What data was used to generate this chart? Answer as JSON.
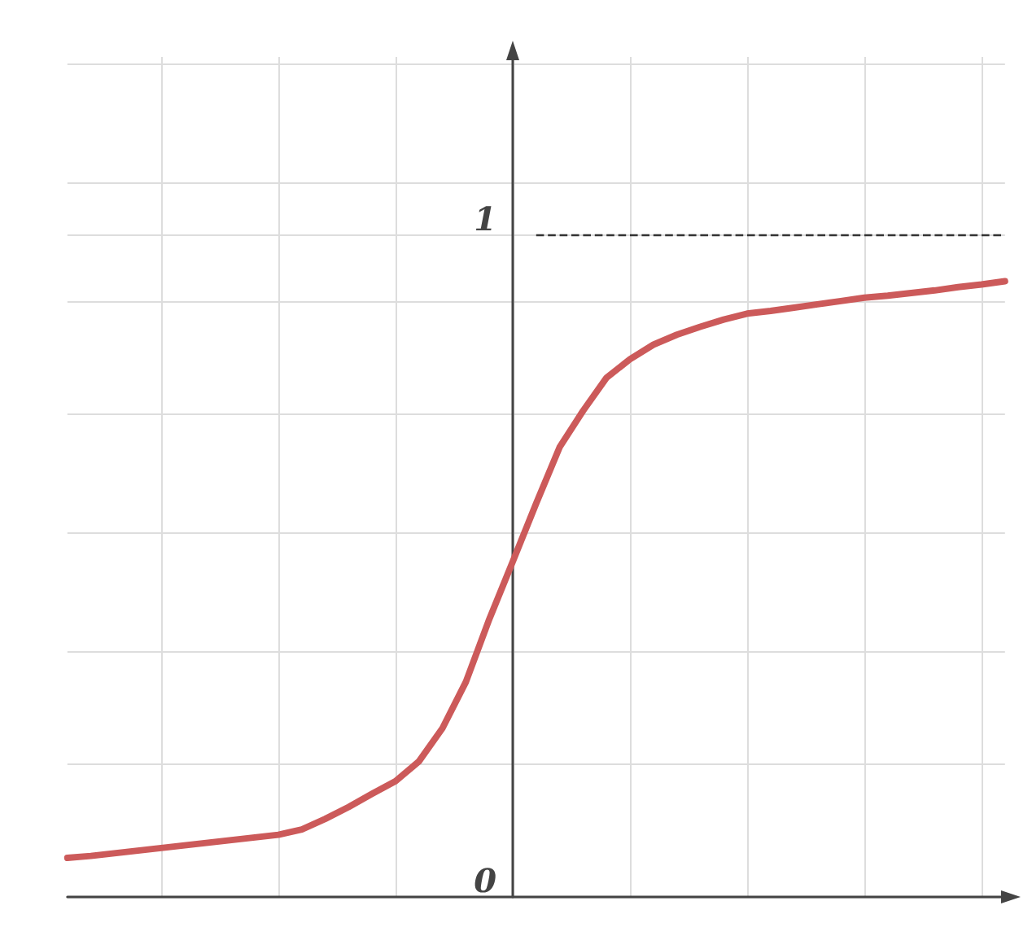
{
  "chart_data": {
    "type": "line",
    "categories": [
      null,
      null,
      null,
      null,
      null,
      null,
      null,
      null,
      null,
      null,
      null,
      null,
      null,
      null,
      null,
      null,
      null,
      null,
      null,
      null,
      null,
      null,
      null,
      null,
      null,
      null,
      null,
      null,
      null,
      null,
      null,
      null,
      null,
      null,
      null,
      null,
      null,
      null,
      null,
      null,
      null
    ],
    "series": [
      {
        "color": "#cc5a5a",
        "values": [
          0.059,
          0.062,
          0.066,
          0.07,
          0.074,
          0.078,
          0.082,
          0.086,
          0.09,
          0.094,
          0.102,
          0.118,
          0.136,
          0.156,
          0.175,
          0.205,
          0.255,
          0.325,
          0.42,
          0.507,
          0.595,
          0.68,
          0.735,
          0.785,
          0.813,
          0.835,
          0.85,
          0.862,
          0.873,
          0.882,
          0.886,
          0.891,
          0.896,
          0.901,
          0.906,
          0.909,
          0.913,
          0.917,
          0.922,
          0.926,
          0.931
        ]
      }
    ],
    "ylim": [
      0,
      1.27
    ],
    "yticks": [
      {
        "value": 0,
        "label": "0"
      },
      {
        "value": 0.2,
        "label": null
      },
      {
        "value": 0.37,
        "label": null
      },
      {
        "value": 0.55,
        "label": null
      },
      {
        "value": 0.73,
        "label": null
      },
      {
        "value": 0.9,
        "label": null
      },
      {
        "value": 1,
        "label": "1"
      },
      {
        "value": 1.08,
        "label": null
      },
      {
        "value": 1.26,
        "label": null
      }
    ],
    "ref_lines": [
      {
        "axis": "y",
        "value": 1,
        "line_style": "dashed",
        "color": "#333333"
      }
    ],
    "grid": true,
    "marker": "none",
    "line_style": "solid"
  }
}
